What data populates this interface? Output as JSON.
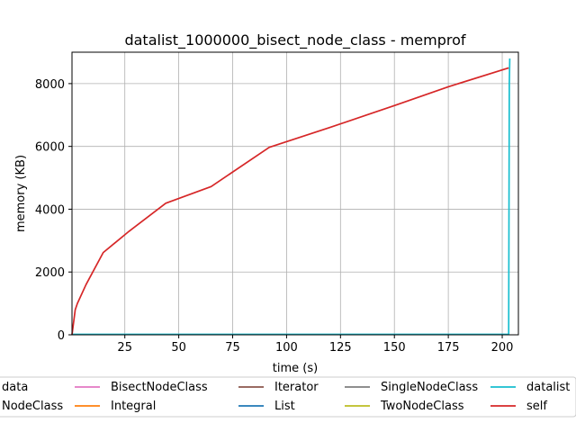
{
  "chart_data": {
    "type": "line",
    "title": "datalist_1000000_bisect_node_class - memprof",
    "xlabel": "time (s)",
    "ylabel": "memory (KB)",
    "xlim": [
      0.5,
      207.5
    ],
    "ylim": [
      0,
      9000
    ],
    "x_ticks": [
      25,
      50,
      75,
      100,
      125,
      150,
      175,
      200
    ],
    "y_ticks": [
      0,
      2000,
      4000,
      6000,
      8000
    ],
    "grid": true,
    "legend_placement": "bottom",
    "series": [
      {
        "name": "data",
        "color": "#9467bd",
        "x": [
          203,
          203
        ],
        "y": [
          0,
          0
        ]
      },
      {
        "name": "NodeClass",
        "color": "#8c564b",
        "x": [
          203,
          203
        ],
        "y": [
          0,
          0
        ]
      },
      {
        "name": "BisectNodeClass",
        "color": "#e377c2",
        "x": [
          203,
          203
        ],
        "y": [
          0,
          0
        ]
      },
      {
        "name": "Integral",
        "color": "#ff7f0e",
        "x": [
          203,
          203
        ],
        "y": [
          0,
          0
        ]
      },
      {
        "name": "Iterator",
        "color": "#8c564b",
        "x": [
          203,
          203
        ],
        "y": [
          0,
          0
        ]
      },
      {
        "name": "List",
        "color": "#1f77b4",
        "x": [
          203,
          203
        ],
        "y": [
          0,
          0
        ]
      },
      {
        "name": "SingleNodeClass",
        "color": "#7f7f7f",
        "x": [
          203,
          203
        ],
        "y": [
          0,
          0
        ]
      },
      {
        "name": "TwoNodeClass",
        "color": "#bcbd22",
        "x": [
          203,
          203
        ],
        "y": [
          0,
          0
        ]
      },
      {
        "name": "datalist",
        "color": "#17becf",
        "x": [
          0.5,
          203,
          203.3,
          203.5
        ],
        "y": [
          15,
          15,
          8000,
          8800
        ]
      },
      {
        "name": "self",
        "color": "#d62728",
        "x": [
          0.5,
          2,
          3,
          7,
          15,
          27,
          44,
          65,
          92,
          120,
          150,
          175,
          203
        ],
        "y": [
          0,
          800,
          1000,
          1600,
          2620,
          3300,
          4190,
          4720,
          5970,
          6600,
          7300,
          7900,
          8500
        ]
      }
    ]
  }
}
